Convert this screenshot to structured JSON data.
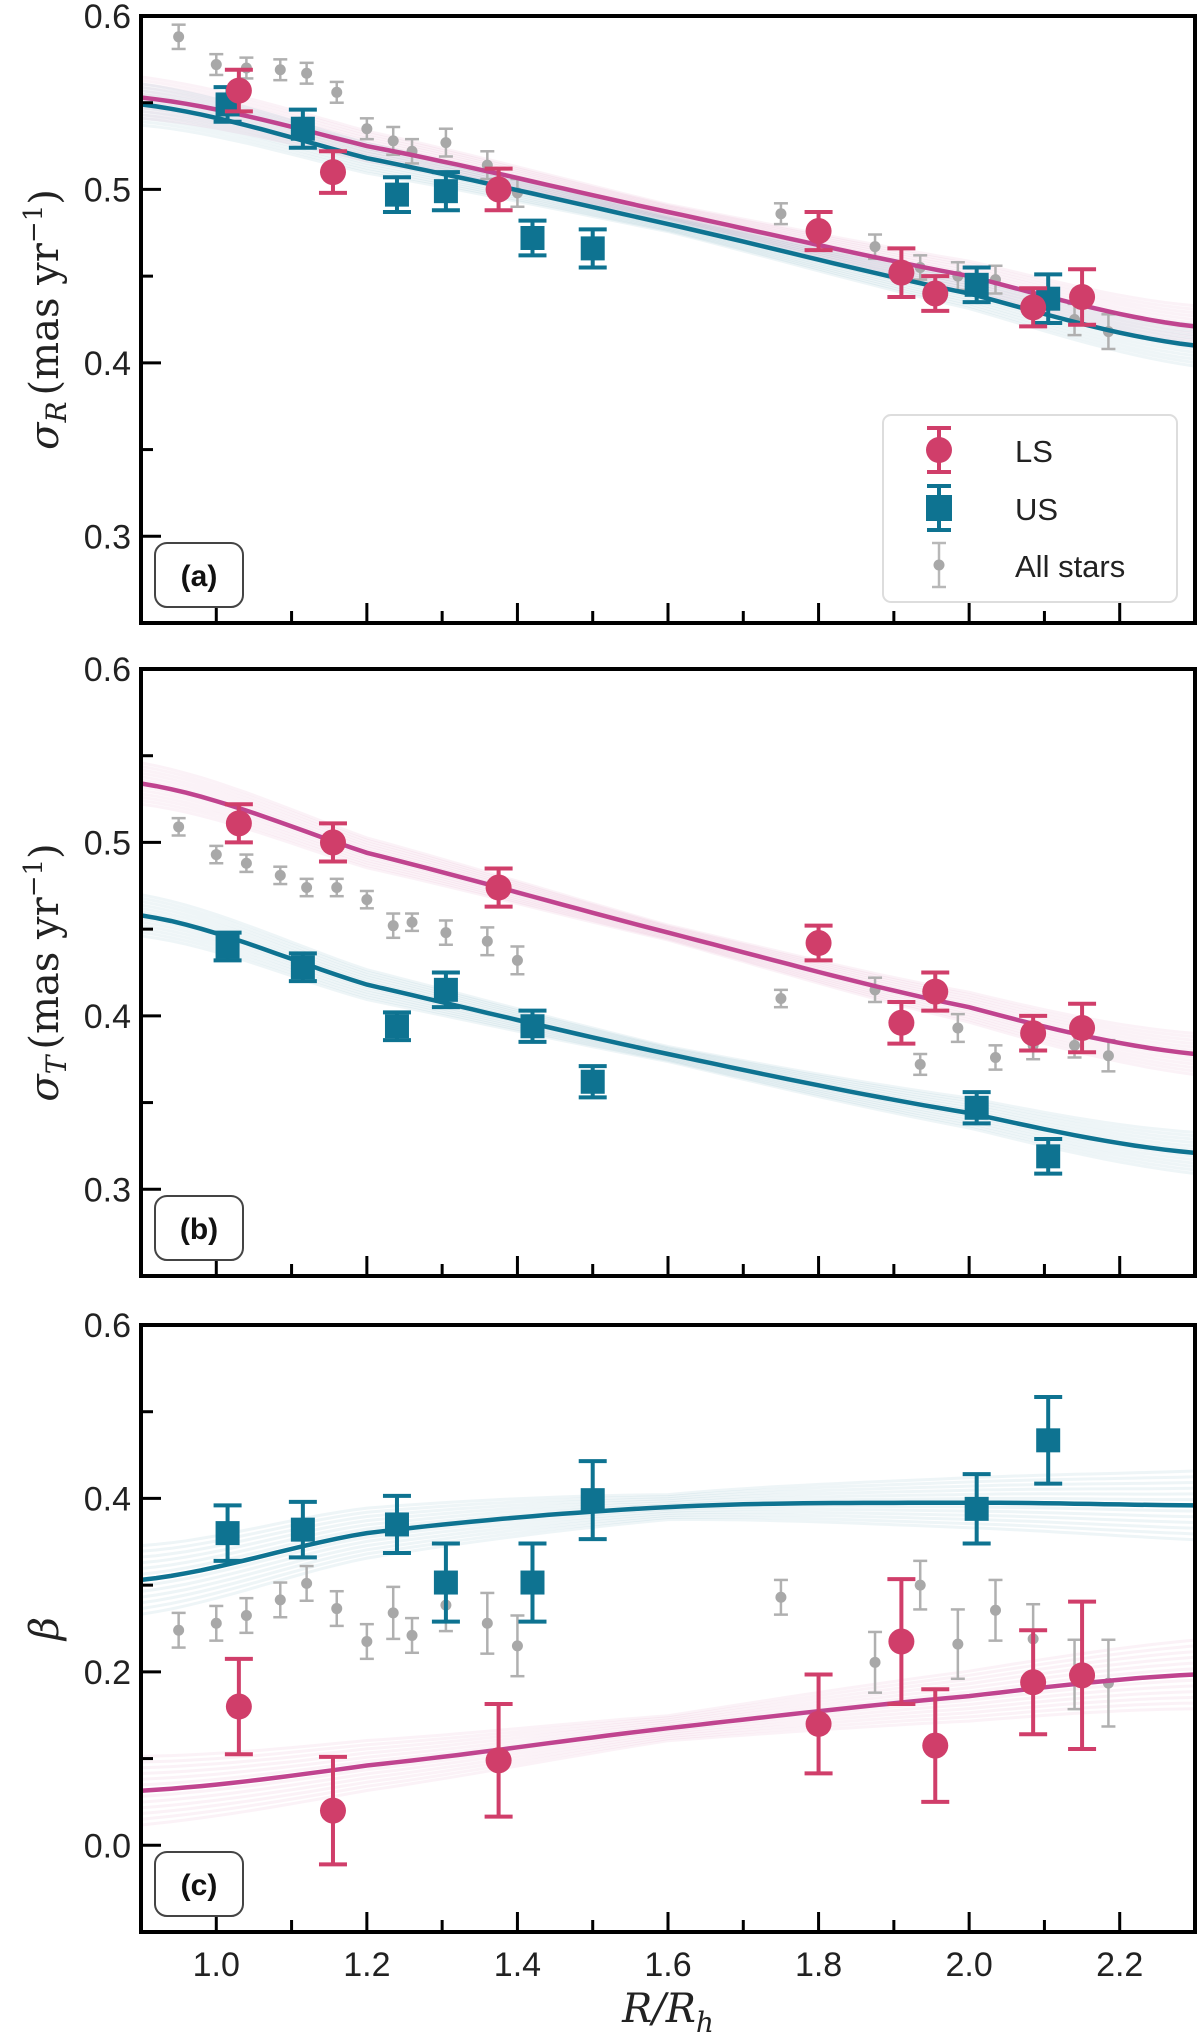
{
  "colors": {
    "LS": "#d03e6a",
    "US": "#0e7391",
    "LS_fit": "#c0448f",
    "US_fit": "#0e7391",
    "All": "#b0b0b0"
  },
  "legend": {
    "LS": "LS",
    "US": "US",
    "All": "All stars",
    "placement": "lower-right of panel (a)"
  },
  "xlabel": "R/R_h",
  "chart_data": [
    {
      "type": "scatter",
      "panel_label": "(a)",
      "ylabel": "σR (mas yr−1)",
      "ylabel_parts": {
        "sym": "σ",
        "sub": "R",
        "unit": "(mas yr",
        "exp": "−1",
        "close": ")"
      },
      "xlim": [
        0.9,
        2.3
      ],
      "ylim": [
        0.25,
        0.6
      ],
      "xticks": [
        1.0,
        1.2,
        1.4,
        1.6,
        1.8,
        2.0,
        2.2
      ],
      "yticks": [
        0.3,
        0.4,
        0.5,
        0.6
      ],
      "yminor": 0.05,
      "series": [
        {
          "name": "LS",
          "marker": "circle",
          "x": [
            1.03,
            1.155,
            1.375,
            1.8,
            1.91,
            1.955,
            2.085,
            2.15
          ],
          "y": [
            0.557,
            0.51,
            0.5,
            0.476,
            0.452,
            0.44,
            0.432,
            0.438
          ],
          "err": [
            0.012,
            0.012,
            0.012,
            0.011,
            0.014,
            0.01,
            0.011,
            0.016
          ]
        },
        {
          "name": "US",
          "marker": "square",
          "x": [
            1.015,
            1.115,
            1.24,
            1.305,
            1.42,
            1.5,
            2.01,
            2.105
          ],
          "y": [
            0.549,
            0.535,
            0.497,
            0.499,
            0.472,
            0.466,
            0.445,
            0.437
          ],
          "err": [
            0.01,
            0.011,
            0.01,
            0.011,
            0.01,
            0.011,
            0.01,
            0.014
          ]
        },
        {
          "name": "All stars",
          "marker": "dot",
          "x": [
            0.95,
            1.0,
            1.04,
            1.085,
            1.12,
            1.16,
            1.2,
            1.235,
            1.26,
            1.305,
            1.36,
            1.4,
            1.75,
            1.875,
            1.935,
            1.985,
            2.035,
            2.085,
            2.14,
            2.185
          ],
          "y": [
            0.588,
            0.572,
            0.57,
            0.569,
            0.567,
            0.556,
            0.535,
            0.528,
            0.522,
            0.527,
            0.514,
            0.498,
            0.486,
            0.467,
            0.455,
            0.45,
            0.448,
            0.435,
            0.425,
            0.418
          ],
          "err": [
            0.007,
            0.006,
            0.006,
            0.006,
            0.006,
            0.006,
            0.006,
            0.008,
            0.007,
            0.008,
            0.008,
            0.008,
            0.006,
            0.007,
            0.007,
            0.008,
            0.008,
            0.008,
            0.009,
            0.01
          ]
        }
      ],
      "fits": [
        {
          "of": "LS",
          "x": [
            0.9,
            1.2,
            1.6,
            2.0,
            2.3
          ],
          "y": [
            0.553,
            0.525,
            0.487,
            0.45,
            0.421
          ]
        },
        {
          "of": "US",
          "x": [
            0.9,
            1.2,
            1.6,
            2.0,
            2.3
          ],
          "y": [
            0.549,
            0.518,
            0.48,
            0.44,
            0.41
          ]
        }
      ]
    },
    {
      "type": "scatter",
      "panel_label": "(b)",
      "ylabel": "σT (mas yr−1)",
      "ylabel_parts": {
        "sym": "σ",
        "sub": "T",
        "unit": "(mas yr",
        "exp": "−1",
        "close": ")"
      },
      "xlim": [
        0.9,
        2.3
      ],
      "ylim": [
        0.25,
        0.6
      ],
      "xticks": [
        1.0,
        1.2,
        1.4,
        1.6,
        1.8,
        2.0,
        2.2
      ],
      "yticks": [
        0.3,
        0.4,
        0.5,
        0.6
      ],
      "yminor": 0.05,
      "series": [
        {
          "name": "LS",
          "marker": "circle",
          "x": [
            1.03,
            1.155,
            1.375,
            1.8,
            1.91,
            1.955,
            2.085,
            2.15
          ],
          "y": [
            0.511,
            0.5,
            0.474,
            0.442,
            0.396,
            0.414,
            0.39,
            0.393
          ],
          "err": [
            0.011,
            0.011,
            0.011,
            0.01,
            0.012,
            0.011,
            0.01,
            0.014
          ]
        },
        {
          "name": "US",
          "marker": "square",
          "x": [
            1.015,
            1.115,
            1.24,
            1.305,
            1.42,
            1.5,
            2.01,
            2.105
          ],
          "y": [
            0.44,
            0.428,
            0.394,
            0.415,
            0.394,
            0.362,
            0.347,
            0.319
          ],
          "err": [
            0.008,
            0.008,
            0.008,
            0.01,
            0.009,
            0.009,
            0.009,
            0.01
          ]
        },
        {
          "name": "All stars",
          "marker": "dot",
          "x": [
            0.95,
            1.0,
            1.04,
            1.085,
            1.12,
            1.16,
            1.2,
            1.235,
            1.26,
            1.305,
            1.36,
            1.4,
            1.75,
            1.875,
            1.935,
            1.985,
            2.035,
            2.085,
            2.14,
            2.185
          ],
          "y": [
            0.509,
            0.493,
            0.488,
            0.481,
            0.474,
            0.474,
            0.467,
            0.452,
            0.454,
            0.448,
            0.443,
            0.432,
            0.41,
            0.415,
            0.372,
            0.393,
            0.376,
            0.383,
            0.383,
            0.377
          ],
          "err": [
            0.005,
            0.005,
            0.005,
            0.005,
            0.005,
            0.005,
            0.005,
            0.007,
            0.005,
            0.007,
            0.008,
            0.008,
            0.005,
            0.007,
            0.006,
            0.008,
            0.007,
            0.008,
            0.007,
            0.009
          ]
        }
      ],
      "fits": [
        {
          "of": "LS",
          "x": [
            0.9,
            1.2,
            1.6,
            2.0,
            2.3
          ],
          "y": [
            0.534,
            0.494,
            0.448,
            0.405,
            0.378
          ]
        },
        {
          "of": "US",
          "x": [
            0.9,
            1.2,
            1.6,
            2.0,
            2.3
          ],
          "y": [
            0.458,
            0.418,
            0.378,
            0.344,
            0.321
          ]
        }
      ]
    },
    {
      "type": "scatter",
      "panel_label": "(c)",
      "ylabel": "β",
      "ylabel_parts": {
        "sym": "β",
        "sub": "",
        "unit": "",
        "exp": "",
        "close": ""
      },
      "xlim": [
        0.9,
        2.3
      ],
      "ylim": [
        -0.1,
        0.6
      ],
      "xticks": [
        1.0,
        1.2,
        1.4,
        1.6,
        1.8,
        2.0,
        2.2
      ],
      "xticklabels": [
        "1.0",
        "1.2",
        "1.4",
        "1.6",
        "1.8",
        "2.0",
        "2.2"
      ],
      "yticks": [
        0.0,
        0.2,
        0.4,
        0.6
      ],
      "yminor": 0.1,
      "series": [
        {
          "name": "LS",
          "marker": "circle",
          "x": [
            1.03,
            1.155,
            1.375,
            1.8,
            1.91,
            1.955,
            2.085,
            2.15
          ],
          "y": [
            0.16,
            0.04,
            0.098,
            0.14,
            0.235,
            0.115,
            0.188,
            0.196
          ],
          "err": [
            0.055,
            0.062,
            0.065,
            0.057,
            0.072,
            0.065,
            0.06,
            0.085
          ]
        },
        {
          "name": "US",
          "marker": "square",
          "x": [
            1.015,
            1.115,
            1.24,
            1.305,
            1.42,
            1.5,
            2.01,
            2.105
          ],
          "y": [
            0.36,
            0.364,
            0.37,
            0.303,
            0.303,
            0.398,
            0.388,
            0.467
          ],
          "err": [
            0.032,
            0.032,
            0.033,
            0.045,
            0.045,
            0.045,
            0.04,
            0.05
          ]
        },
        {
          "name": "All stars",
          "marker": "dot",
          "x": [
            0.95,
            1.0,
            1.04,
            1.085,
            1.12,
            1.16,
            1.2,
            1.235,
            1.26,
            1.305,
            1.36,
            1.4,
            1.75,
            1.875,
            1.935,
            1.985,
            2.035,
            2.085,
            2.14,
            2.185
          ],
          "y": [
            0.248,
            0.256,
            0.265,
            0.283,
            0.302,
            0.273,
            0.235,
            0.268,
            0.242,
            0.277,
            0.256,
            0.23,
            0.286,
            0.211,
            0.3,
            0.232,
            0.271,
            0.238,
            0.197,
            0.187
          ],
          "err": [
            0.02,
            0.02,
            0.02,
            0.02,
            0.02,
            0.02,
            0.02,
            0.03,
            0.02,
            0.03,
            0.035,
            0.035,
            0.02,
            0.035,
            0.028,
            0.04,
            0.035,
            0.04,
            0.04,
            0.05
          ]
        }
      ],
      "fits": [
        {
          "of": "LS",
          "x": [
            0.9,
            1.2,
            1.6,
            2.0,
            2.3
          ],
          "y": [
            0.063,
            0.092,
            0.135,
            0.172,
            0.197
          ]
        },
        {
          "of": "US",
          "x": [
            0.9,
            1.2,
            1.6,
            2.0,
            2.3
          ],
          "y": [
            0.306,
            0.36,
            0.39,
            0.395,
            0.392
          ]
        }
      ]
    }
  ]
}
